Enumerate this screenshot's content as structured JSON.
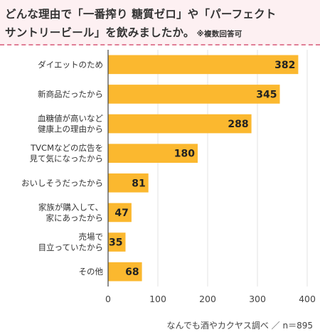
{
  "header": {
    "title_line1": "どんな理由で「一番搾り 糖質ゼロ」や「パーフェクト",
    "title_line2": "サントリービール」を飲みましたか。",
    "title_note": "※複数回答可"
  },
  "footer": {
    "source": "なんでも酒やカクヤス調べ ／ n＝895"
  },
  "colors": {
    "bar": "#fbb82f",
    "axis": "#444444",
    "grid": "#e3e3e3"
  },
  "chart_data": {
    "type": "bar",
    "orientation": "horizontal",
    "categories": [
      [
        "ダイエットのため"
      ],
      [
        "新商品だったから"
      ],
      [
        "血糖値が高いなど",
        "健康上の理由から"
      ],
      [
        "TVCMなどの広告を",
        "見て気になったから"
      ],
      [
        "おいしそうだったから"
      ],
      [
        "家族が購入して、",
        "家にあったから"
      ],
      [
        "売場で",
        "目立っていたから"
      ],
      [
        "その他"
      ]
    ],
    "values": [
      382,
      345,
      288,
      180,
      81,
      47,
      35,
      68
    ],
    "xlim": [
      0,
      400
    ],
    "xticks": [
      0,
      100,
      200,
      300,
      400
    ],
    "grid": true,
    "data_labels": true
  }
}
